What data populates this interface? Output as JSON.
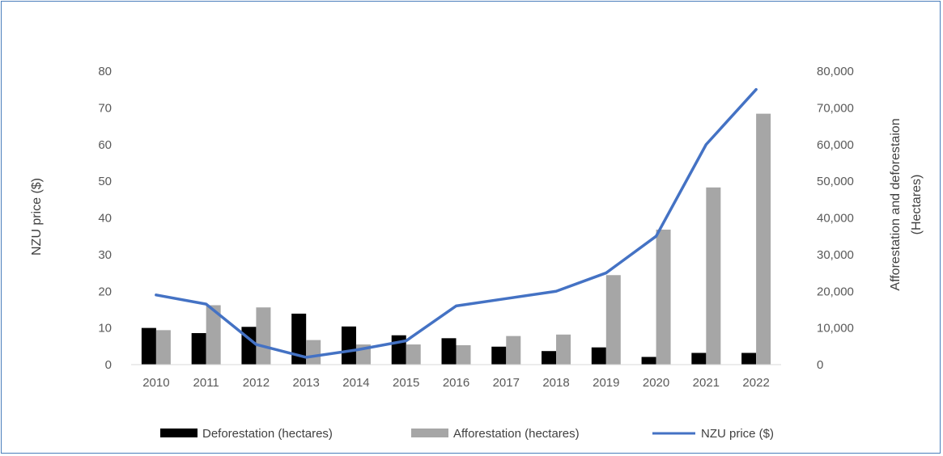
{
  "chart_data": {
    "type": "bar",
    "categories": [
      "2010",
      "2011",
      "2012",
      "2013",
      "2014",
      "2015",
      "2016",
      "2017",
      "2018",
      "2019",
      "2020",
      "2021",
      "2022"
    ],
    "series": [
      {
        "name": "Deforestation (hectares)",
        "kind": "bar",
        "axis": "right",
        "color": "#000000",
        "values": [
          10000,
          8600,
          10300,
          13900,
          10400,
          8000,
          7200,
          4900,
          3700,
          4700,
          2100,
          3200,
          3200
        ]
      },
      {
        "name": "Afforestation (hectares)",
        "kind": "bar",
        "axis": "right",
        "color": "#a6a6a6",
        "values": [
          9400,
          16200,
          15600,
          6700,
          5500,
          5500,
          5300,
          7800,
          8200,
          24400,
          36800,
          48300,
          68400
        ]
      },
      {
        "name": "NZU price ($)",
        "kind": "line",
        "axis": "left",
        "color": "#4472c4",
        "values": [
          19,
          16.5,
          5.5,
          2,
          4,
          6.5,
          16,
          18,
          20,
          25,
          35,
          60,
          75
        ]
      }
    ],
    "ylabel": "NZU price ($)",
    "y2label_line1": "Afforestation and deforestaion",
    "y2label_line2": "(Hectares)",
    "ylim": [
      0,
      80
    ],
    "y2lim": [
      0,
      80000
    ],
    "yticks": [
      "0",
      "10",
      "20",
      "30",
      "40",
      "50",
      "60",
      "70",
      "80"
    ],
    "y2ticks": [
      "0",
      "10,000",
      "20,000",
      "30,000",
      "40,000",
      "50,000",
      "60,000",
      "70,000",
      "80,000"
    ],
    "grid": false,
    "legend_position": "bottom"
  }
}
